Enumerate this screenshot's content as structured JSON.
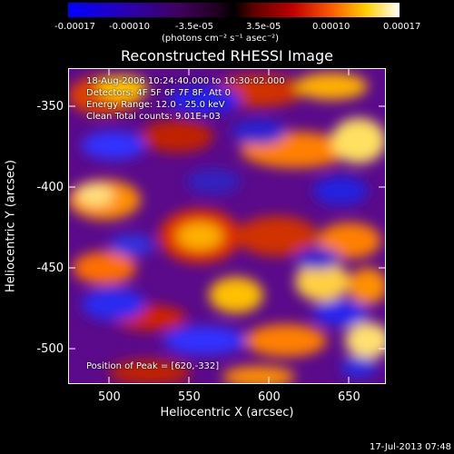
{
  "colorbar": {
    "ticks": [
      "-0.00017",
      "-0.00010",
      "-3.5e-05",
      "3.5e-05",
      "0.00010",
      "0.00017"
    ],
    "units": "(photons cm⁻² s⁻¹ asec⁻²)"
  },
  "title": "Reconstructed RHESSI Image",
  "info": {
    "line1": "18-Aug-2006 10:24:40.000 to 10:30:02.000",
    "line2": "Detectors: 4F 5F 6F 7F 8F, Att 0",
    "line3": "Energy Range: 12.0 - 25.0 keV",
    "line4": "Clean    Total counts: 9.01E+03"
  },
  "peak": "Position of Peak = [620,-332]",
  "axes": {
    "xlabel": "Heliocentric X (arcsec)",
    "ylabel": "Heliocentric Y (arcsec)",
    "xticks": [
      "500",
      "550",
      "600",
      "650"
    ],
    "yticks": [
      "-350",
      "-400",
      "-450",
      "-500"
    ]
  },
  "footer": "17-Jul-2013 07:48"
}
